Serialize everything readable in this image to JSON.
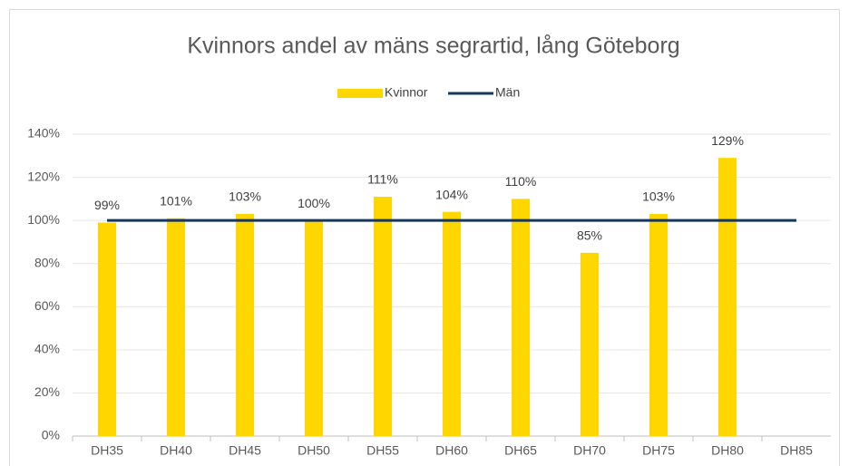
{
  "chart_data": {
    "type": "bar",
    "title": "Kvinnors andel av mäns segrartid, lång Göteborg",
    "categories": [
      "DH35",
      "DH40",
      "DH45",
      "DH50",
      "DH55",
      "DH60",
      "DH65",
      "DH70",
      "DH75",
      "DH80",
      "DH85"
    ],
    "series": [
      {
        "name": "Kvinnor",
        "type": "bar",
        "color": "#ffd700",
        "values": [
          99,
          101,
          103,
          100,
          111,
          104,
          110,
          85,
          103,
          129,
          null
        ],
        "value_labels": [
          "99%",
          "101%",
          "103%",
          "100%",
          "111%",
          "104%",
          "110%",
          "85%",
          "103%",
          "129%",
          null
        ]
      },
      {
        "name": "Män",
        "type": "line",
        "color": "#17375e",
        "values": [
          100,
          100,
          100,
          100,
          100,
          100,
          100,
          100,
          100,
          100,
          100
        ]
      }
    ],
    "ylim": [
      0,
      140
    ],
    "yticks": [
      {
        "value": 0,
        "label": "0%"
      },
      {
        "value": 20,
        "label": "20%"
      },
      {
        "value": 40,
        "label": "40%"
      },
      {
        "value": 60,
        "label": "60%"
      },
      {
        "value": 80,
        "label": "80%"
      },
      {
        "value": 100,
        "label": "100%"
      },
      {
        "value": 120,
        "label": "120%"
      },
      {
        "value": 140,
        "label": "140%"
      }
    ],
    "grid": true,
    "legend": "top"
  }
}
